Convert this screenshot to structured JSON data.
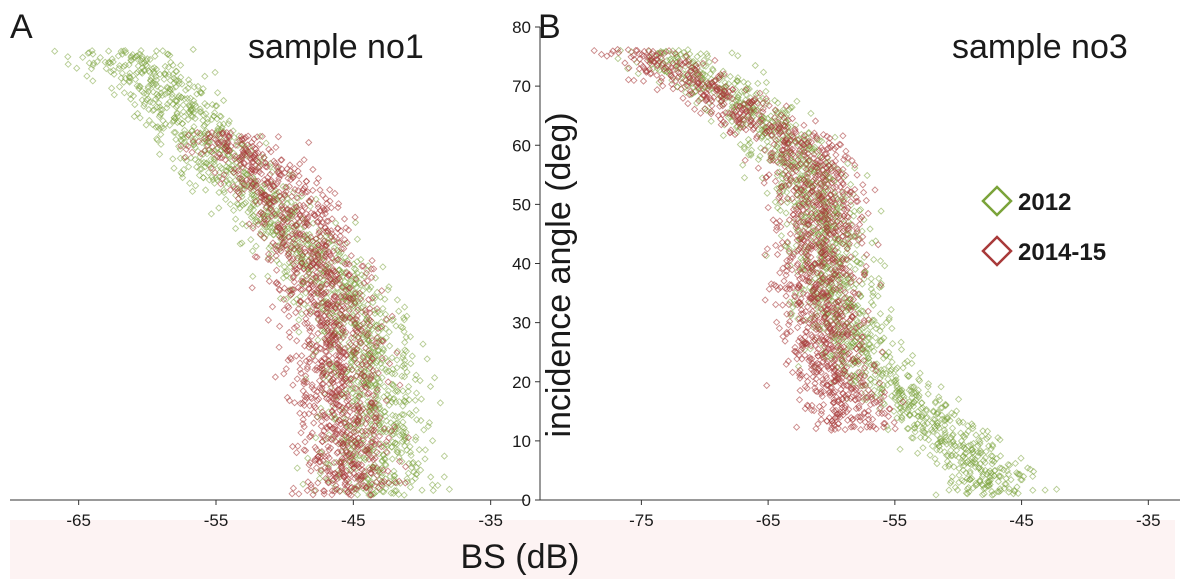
{
  "figure": {
    "xlabel": "BS (dB)",
    "ylabel": "incidence angle (deg)",
    "y_ticks": [
      "0",
      "10",
      "20",
      "30",
      "40",
      "50",
      "60",
      "70",
      "80"
    ],
    "legend": [
      {
        "label": "2012",
        "color": "#7aa33a"
      },
      {
        "label": "2014-15",
        "color": "#a83a3a"
      }
    ]
  },
  "chart_data": [
    {
      "type": "scatter",
      "panel_letter": "A",
      "title": "sample no1",
      "xlim": [
        -70,
        -32.5
      ],
      "ylim": [
        0,
        80
      ],
      "x_ticks": [
        "-65",
        "-55",
        "-45",
        "-35"
      ],
      "grid": false,
      "series": [
        {
          "name": "2012",
          "color": "#7aa33a",
          "ridge": [
            [
              76,
              -61.5
            ],
            [
              70,
              -59
            ],
            [
              65,
              -57.5
            ],
            [
              60,
              -55.5
            ],
            [
              55,
              -53.5
            ],
            [
              50,
              -51.5
            ],
            [
              45,
              -49.5
            ],
            [
              40,
              -47.5
            ],
            [
              35,
              -46
            ],
            [
              30,
              -45
            ],
            [
              25,
              -44
            ],
            [
              20,
              -43.5
            ],
            [
              15,
              -43.5
            ],
            [
              10,
              -43.5
            ],
            [
              5,
              -43.5
            ],
            [
              1,
              -43.5
            ]
          ],
          "spread_db": 3.2
        },
        {
          "name": "2014-15",
          "color": "#a83a3a",
          "ridge": [
            [
              62,
              -54
            ],
            [
              55,
              -51.5
            ],
            [
              50,
              -49.5
            ],
            [
              45,
              -48.5
            ],
            [
              40,
              -47.5
            ],
            [
              35,
              -47
            ],
            [
              30,
              -46.5
            ],
            [
              25,
              -46.5
            ],
            [
              20,
              -46.5
            ],
            [
              15,
              -46
            ],
            [
              10,
              -45.5
            ],
            [
              5,
              -45.5
            ],
            [
              1,
              -45.5
            ]
          ],
          "spread_db": 3.0
        }
      ]
    },
    {
      "type": "scatter",
      "panel_letter": "B",
      "title": "sample no3",
      "xlim": [
        -83,
        -32.5
      ],
      "ylim": [
        0,
        80
      ],
      "x_ticks": [
        "-75",
        "-65",
        "-55",
        "-45",
        "-35"
      ],
      "grid": false,
      "series": [
        {
          "name": "2012",
          "color": "#7aa33a",
          "ridge": [
            [
              76,
              -73
            ],
            [
              70,
              -69
            ],
            [
              65,
              -66
            ],
            [
              60,
              -63.5
            ],
            [
              55,
              -62
            ],
            [
              50,
              -61
            ],
            [
              45,
              -60.5
            ],
            [
              40,
              -60
            ],
            [
              35,
              -59.5
            ],
            [
              30,
              -59
            ],
            [
              25,
              -58
            ],
            [
              20,
              -56
            ],
            [
              15,
              -53
            ],
            [
              10,
              -50
            ],
            [
              5,
              -48
            ],
            [
              1,
              -47
            ]
          ],
          "spread_db": 3.0
        },
        {
          "name": "2014-15",
          "color": "#a83a3a",
          "ridge": [
            [
              76,
              -75
            ],
            [
              70,
              -70
            ],
            [
              65,
              -66.5
            ],
            [
              60,
              -62
            ],
            [
              55,
              -61.5
            ],
            [
              50,
              -61
            ],
            [
              45,
              -60.5
            ],
            [
              40,
              -61
            ],
            [
              35,
              -61
            ],
            [
              30,
              -60.5
            ],
            [
              25,
              -60.5
            ],
            [
              20,
              -59.5
            ],
            [
              15,
              -58.5
            ],
            [
              12,
              -58
            ]
          ],
          "spread_db": 3.0
        }
      ]
    }
  ]
}
